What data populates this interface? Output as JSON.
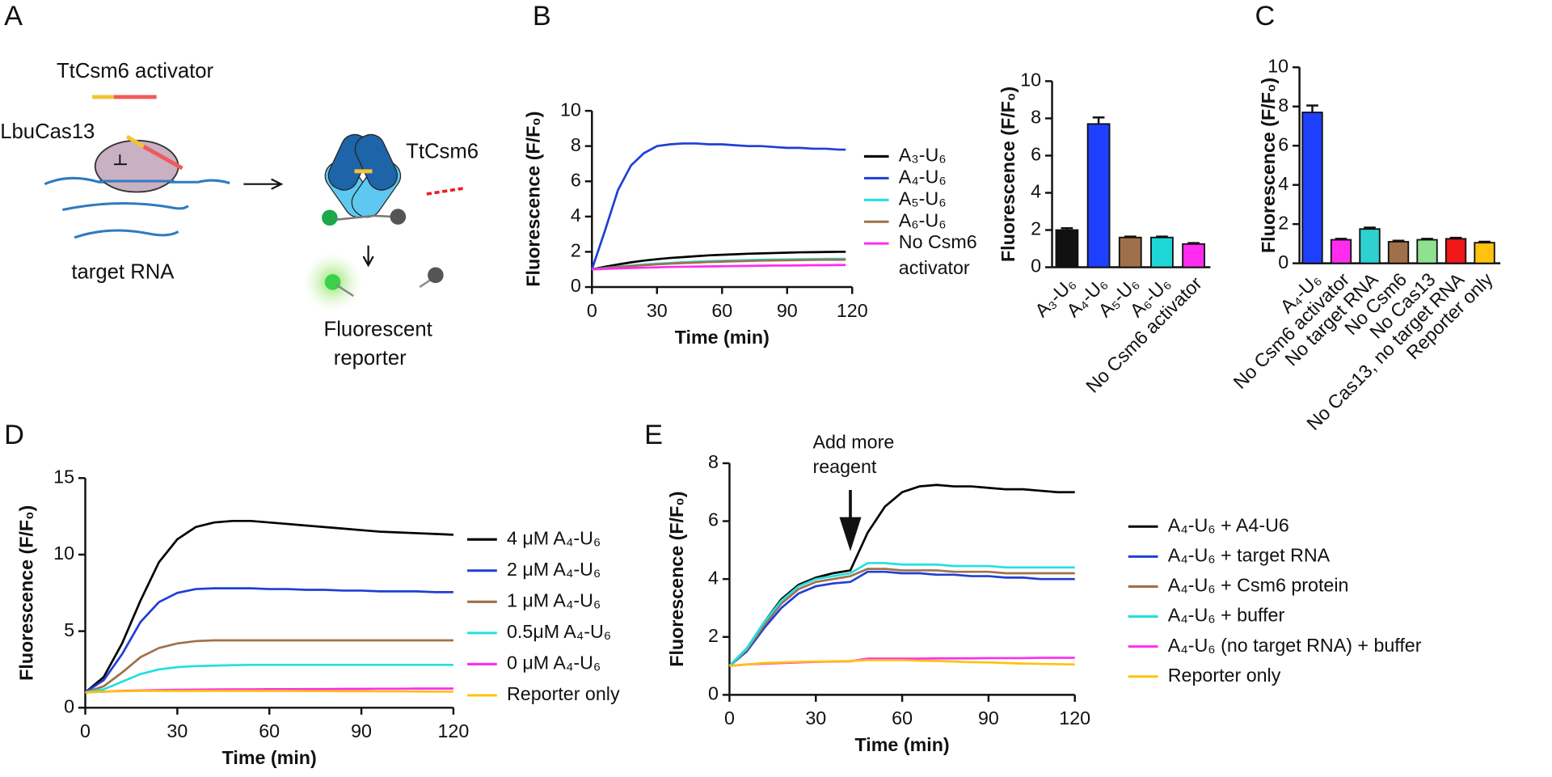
{
  "panel_labels": [
    "A",
    "B",
    "C",
    "D",
    "E"
  ],
  "diagram": {
    "activator_label": "TtCsm6 activator",
    "cas_label": "LbuCas13",
    "target_label": "target RNA",
    "csm6_label": "TtCsm6",
    "reporter_label": [
      "Fluorescent",
      "reporter"
    ]
  },
  "chart_data": [
    {
      "type": "line",
      "xlabel": "Time (min)",
      "ylabel": "Fluorescence (F/F₀)",
      "xlim": [
        0,
        120
      ],
      "xticks": [
        0,
        30,
        60,
        90,
        120
      ],
      "ylim": [
        0,
        10
      ],
      "yticks": [
        0,
        2,
        4,
        6,
        8,
        10
      ],
      "x": [
        0,
        6,
        12,
        18,
        24,
        30,
        36,
        42,
        48,
        54,
        60,
        66,
        72,
        78,
        84,
        90,
        96,
        102,
        108,
        114,
        117
      ],
      "series": [
        {
          "name": "A₃-U₆",
          "color": "#000000",
          "values": [
            1.0,
            1.15,
            1.28,
            1.4,
            1.5,
            1.58,
            1.65,
            1.7,
            1.75,
            1.8,
            1.83,
            1.86,
            1.89,
            1.91,
            1.93,
            1.95,
            1.97,
            1.98,
            1.99,
            2.0,
            2.0
          ]
        },
        {
          "name": "A₄-U₆",
          "color": "#1f3fd6",
          "values": [
            1.0,
            3.2,
            5.5,
            6.9,
            7.6,
            8.0,
            8.1,
            8.15,
            8.15,
            8.1,
            8.1,
            8.05,
            8.0,
            8.0,
            7.95,
            7.9,
            7.9,
            7.85,
            7.85,
            7.8,
            7.8
          ]
        },
        {
          "name": "A₅-U₆",
          "color": "#22e0e0",
          "values": [
            1.0,
            1.08,
            1.15,
            1.22,
            1.28,
            1.33,
            1.37,
            1.41,
            1.44,
            1.47,
            1.49,
            1.51,
            1.53,
            1.55,
            1.56,
            1.57,
            1.58,
            1.59,
            1.6,
            1.6,
            1.6
          ]
        },
        {
          "name": "A₆-U₆",
          "color": "#a0704a",
          "values": [
            1.0,
            1.07,
            1.13,
            1.19,
            1.24,
            1.29,
            1.33,
            1.36,
            1.39,
            1.42,
            1.44,
            1.46,
            1.48,
            1.5,
            1.51,
            1.52,
            1.53,
            1.54,
            1.55,
            1.55,
            1.55
          ]
        },
        {
          "name": "No Csm6 activator",
          "color": "#ff2cf0",
          "values": [
            1.0,
            1.03,
            1.06,
            1.08,
            1.1,
            1.12,
            1.14,
            1.15,
            1.16,
            1.17,
            1.18,
            1.19,
            1.2,
            1.21,
            1.22,
            1.22,
            1.23,
            1.24,
            1.24,
            1.25,
            1.25
          ]
        }
      ]
    },
    {
      "type": "bar",
      "ylabel": "Fluorescence (F/F₀)",
      "ylim": [
        0,
        10
      ],
      "yticks": [
        0,
        2,
        4,
        6,
        8,
        10
      ],
      "categories": [
        "A₃-U₆",
        "A₄-U₆",
        "A₅-U₆",
        "A₆-U₆",
        "No Csm6 activator"
      ],
      "values": [
        2.0,
        7.7,
        1.6,
        1.6,
        1.25
      ],
      "errors": [
        0.1,
        0.35,
        0.05,
        0.05,
        0.05
      ],
      "colors": [
        "#111111",
        "#1f3fff",
        "#a0704a",
        "#1fd6d6",
        "#ff2cf0"
      ]
    },
    {
      "type": "bar",
      "ylabel": "Fluorescence (F/F₀)",
      "ylim": [
        0,
        10
      ],
      "yticks": [
        0,
        2,
        4,
        6,
        8,
        10
      ],
      "categories": [
        "A₄-U₆",
        "No Csm6 activator",
        "No target RNA",
        "No Csm6",
        "No Cas13",
        "No Cas13, no target RNA",
        "Reporter only"
      ],
      "values": [
        7.7,
        1.2,
        1.75,
        1.1,
        1.2,
        1.25,
        1.05
      ],
      "errors": [
        0.35,
        0.05,
        0.07,
        0.05,
        0.05,
        0.05,
        0.05
      ],
      "colors": [
        "#1f3fff",
        "#ff2cf0",
        "#2fd0d0",
        "#a0704a",
        "#8fe08f",
        "#f01818",
        "#ffc20e"
      ]
    },
    {
      "type": "line",
      "xlabel": "Time (min)",
      "ylabel": "Fluorescence (F/F₀)",
      "xlim": [
        0,
        120
      ],
      "xticks": [
        0,
        30,
        60,
        90,
        120
      ],
      "ylim": [
        0,
        15
      ],
      "yticks": [
        0,
        5,
        10,
        15
      ],
      "x": [
        0,
        6,
        12,
        18,
        24,
        30,
        36,
        42,
        48,
        54,
        60,
        66,
        72,
        78,
        84,
        90,
        96,
        102,
        108,
        114,
        120
      ],
      "series": [
        {
          "name": "4 μM A₄-U₆",
          "color": "#000000",
          "values": [
            1.0,
            2.0,
            4.2,
            7.0,
            9.5,
            11.0,
            11.8,
            12.1,
            12.2,
            12.2,
            12.1,
            12.0,
            11.9,
            11.8,
            11.7,
            11.6,
            11.5,
            11.45,
            11.4,
            11.35,
            11.3
          ]
        },
        {
          "name": "2 μM A₄-U₆",
          "color": "#1f3fd6",
          "values": [
            1.0,
            1.8,
            3.5,
            5.6,
            6.9,
            7.5,
            7.75,
            7.8,
            7.8,
            7.8,
            7.75,
            7.75,
            7.7,
            7.7,
            7.65,
            7.65,
            7.6,
            7.6,
            7.6,
            7.55,
            7.55
          ]
        },
        {
          "name": "1 μM A₄-U₆",
          "color": "#a0704a",
          "values": [
            1.0,
            1.4,
            2.3,
            3.3,
            3.9,
            4.2,
            4.35,
            4.4,
            4.4,
            4.4,
            4.4,
            4.4,
            4.4,
            4.4,
            4.4,
            4.4,
            4.4,
            4.4,
            4.4,
            4.4,
            4.4
          ]
        },
        {
          "name": "0.5μM A₄-U₆",
          "color": "#22e0e0",
          "values": [
            1.0,
            1.2,
            1.7,
            2.2,
            2.5,
            2.65,
            2.72,
            2.75,
            2.78,
            2.8,
            2.8,
            2.8,
            2.8,
            2.8,
            2.8,
            2.8,
            2.8,
            2.8,
            2.8,
            2.8,
            2.8
          ]
        },
        {
          "name": "0 μM A₄-U₆",
          "color": "#ff2cf0",
          "values": [
            1.0,
            1.05,
            1.1,
            1.13,
            1.15,
            1.17,
            1.18,
            1.19,
            1.2,
            1.2,
            1.21,
            1.21,
            1.22,
            1.22,
            1.23,
            1.23,
            1.24,
            1.24,
            1.25,
            1.25,
            1.25
          ]
        },
        {
          "name": "Reporter only",
          "color": "#ffc20e",
          "values": [
            1.0,
            1.05,
            1.08,
            1.1,
            1.1,
            1.1,
            1.1,
            1.1,
            1.1,
            1.1,
            1.1,
            1.1,
            1.09,
            1.09,
            1.08,
            1.08,
            1.07,
            1.07,
            1.06,
            1.05,
            1.05
          ]
        }
      ]
    },
    {
      "type": "line",
      "xlabel": "Time (min)",
      "ylabel": "Fluorescence (F/F₀)",
      "annotation": "Add more reagent",
      "xlim": [
        0,
        120
      ],
      "xticks": [
        0,
        30,
        60,
        90,
        120
      ],
      "ylim": [
        0,
        8
      ],
      "yticks": [
        0,
        2,
        4,
        6,
        8
      ],
      "x": [
        0,
        6,
        12,
        18,
        24,
        30,
        36,
        42,
        48,
        54,
        60,
        66,
        72,
        78,
        84,
        90,
        96,
        102,
        108,
        114,
        120
      ],
      "series": [
        {
          "name": "A₄-U₆ + A4-U6",
          "color": "#000000",
          "values": [
            1.0,
            1.6,
            2.5,
            3.3,
            3.8,
            4.05,
            4.2,
            4.3,
            5.6,
            6.5,
            7.0,
            7.2,
            7.25,
            7.2,
            7.2,
            7.15,
            7.1,
            7.1,
            7.05,
            7.0,
            7.0
          ]
        },
        {
          "name": "A₄-U₆ + target RNA",
          "color": "#1f3fd6",
          "values": [
            1.0,
            1.5,
            2.3,
            3.0,
            3.5,
            3.75,
            3.85,
            3.9,
            4.25,
            4.25,
            4.2,
            4.2,
            4.15,
            4.15,
            4.1,
            4.1,
            4.05,
            4.05,
            4.0,
            4.0,
            4.0
          ]
        },
        {
          "name": "A₄-U₆ + Csm6 protein",
          "color": "#a0704a",
          "values": [
            1.0,
            1.55,
            2.4,
            3.15,
            3.65,
            3.9,
            4.0,
            4.1,
            4.35,
            4.35,
            4.3,
            4.3,
            4.3,
            4.25,
            4.25,
            4.25,
            4.2,
            4.2,
            4.2,
            4.2,
            4.2
          ]
        },
        {
          "name": "A₄-U₆ + buffer",
          "color": "#22e0e0",
          "values": [
            1.0,
            1.6,
            2.5,
            3.25,
            3.75,
            4.0,
            4.1,
            4.2,
            4.55,
            4.55,
            4.5,
            4.5,
            4.5,
            4.45,
            4.45,
            4.45,
            4.4,
            4.4,
            4.4,
            4.4,
            4.4
          ]
        },
        {
          "name": "A₄-U₆ (no target RNA) + buffer",
          "color": "#ff2cf0",
          "values": [
            1.0,
            1.05,
            1.08,
            1.1,
            1.12,
            1.14,
            1.15,
            1.16,
            1.25,
            1.25,
            1.25,
            1.25,
            1.26,
            1.26,
            1.26,
            1.27,
            1.27,
            1.27,
            1.28,
            1.28,
            1.28
          ]
        },
        {
          "name": "Reporter only",
          "color": "#ffc20e",
          "values": [
            1.0,
            1.05,
            1.1,
            1.12,
            1.14,
            1.15,
            1.16,
            1.17,
            1.2,
            1.2,
            1.2,
            1.18,
            1.17,
            1.15,
            1.13,
            1.12,
            1.1,
            1.08,
            1.07,
            1.06,
            1.05
          ]
        }
      ]
    }
  ]
}
